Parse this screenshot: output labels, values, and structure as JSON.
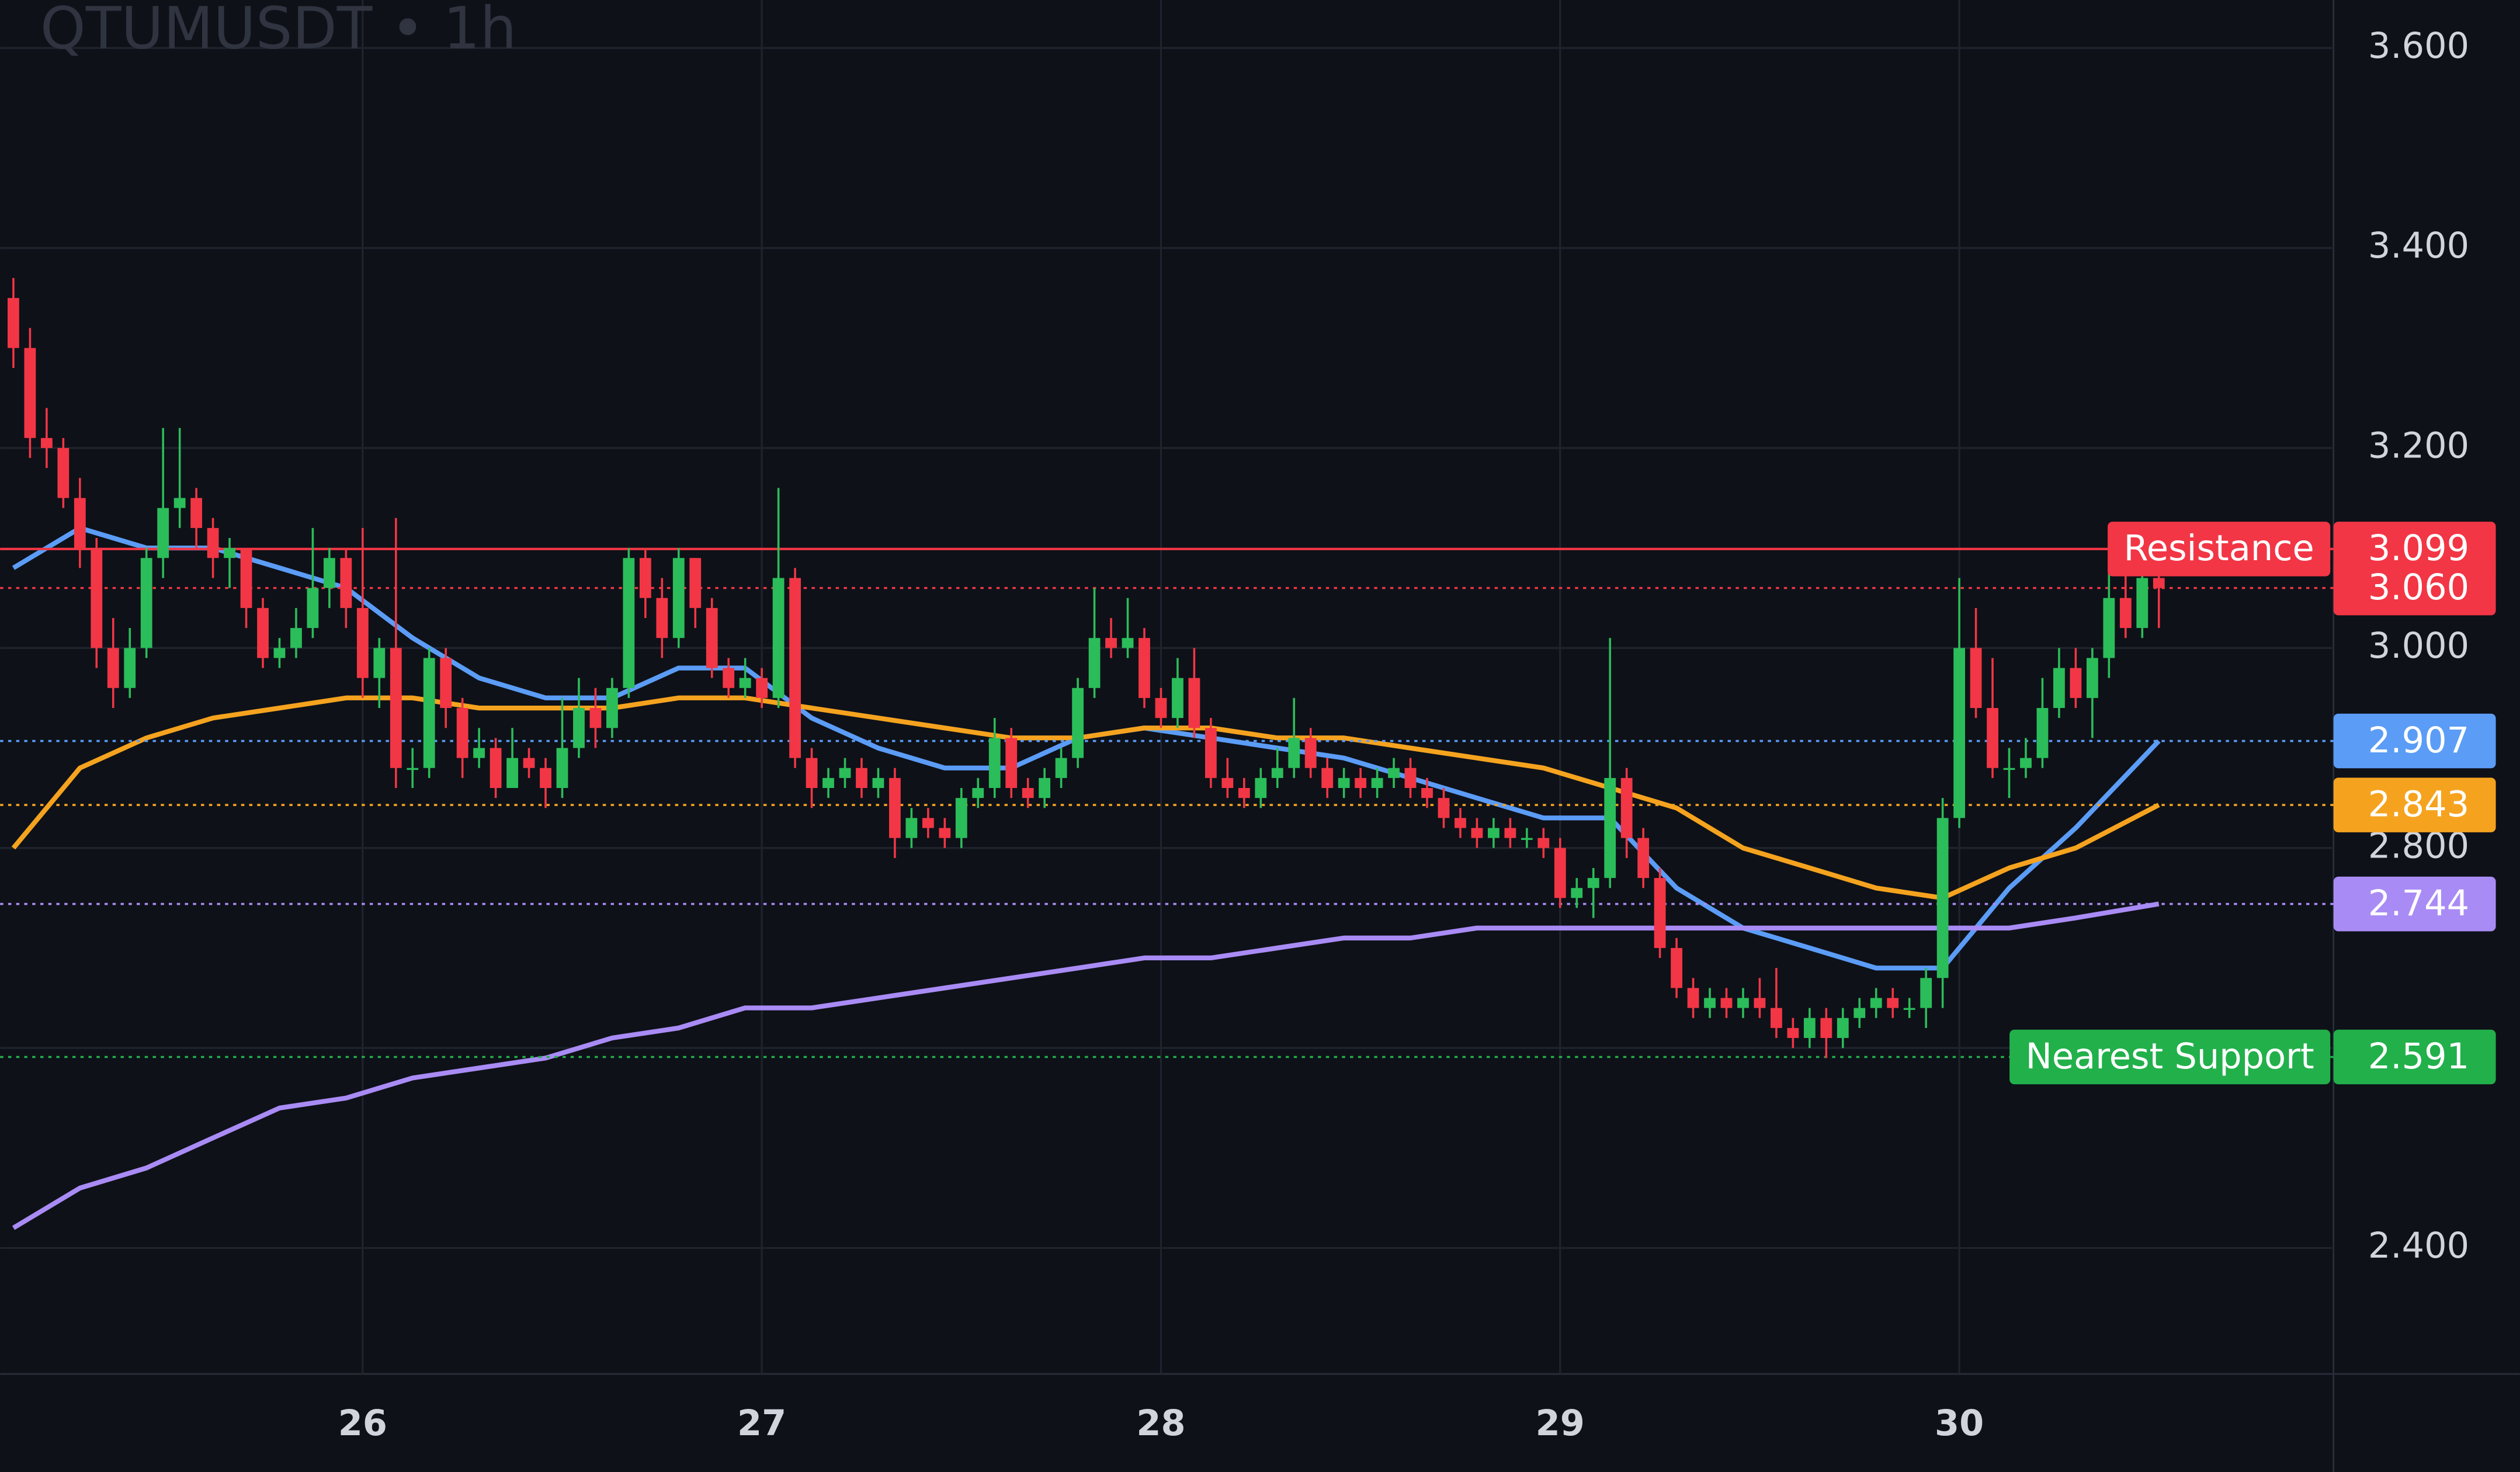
{
  "chart_data": {
    "type": "candlestick",
    "title": "QTUMUSDT • 1h",
    "up_color": "#2bbd5a",
    "down_color": "#f23645",
    "grid": true,
    "xlim": [
      -0.8,
      139.5
    ],
    "xticks": [
      {
        "value": 21,
        "label": "26"
      },
      {
        "value": 45,
        "label": "27"
      },
      {
        "value": 69,
        "label": "28"
      },
      {
        "value": 93,
        "label": "29"
      },
      {
        "value": 117,
        "label": "30"
      }
    ],
    "ylim": [
      2.274,
      3.648
    ],
    "yticks": [
      {
        "value": 2.4,
        "label": "2.400"
      },
      {
        "value": 2.6,
        "label": "2.600"
      },
      {
        "value": 2.8,
        "label": "2.800"
      },
      {
        "value": 3.0,
        "label": "3.000"
      },
      {
        "value": 3.2,
        "label": "3.200"
      },
      {
        "value": 3.4,
        "label": "3.400"
      },
      {
        "value": 3.6,
        "label": "3.600"
      }
    ],
    "candles": [
      [
        3.35,
        3.37,
        3.28,
        3.3
      ],
      [
        3.3,
        3.32,
        3.19,
        3.21
      ],
      [
        3.21,
        3.24,
        3.18,
        3.2
      ],
      [
        3.2,
        3.21,
        3.14,
        3.15
      ],
      [
        3.15,
        3.17,
        3.08,
        3.1
      ],
      [
        3.1,
        3.11,
        2.98,
        3.0
      ],
      [
        3.0,
        3.03,
        2.94,
        2.96
      ],
      [
        2.96,
        3.02,
        2.95,
        3.0
      ],
      [
        3.0,
        3.1,
        2.99,
        3.09
      ],
      [
        3.09,
        3.22,
        3.07,
        3.14
      ],
      [
        3.14,
        3.22,
        3.12,
        3.15
      ],
      [
        3.15,
        3.16,
        3.1,
        3.12
      ],
      [
        3.12,
        3.13,
        3.07,
        3.09
      ],
      [
        3.09,
        3.11,
        3.06,
        3.1
      ],
      [
        3.1,
        3.1,
        3.02,
        3.04
      ],
      [
        3.04,
        3.05,
        2.98,
        2.99
      ],
      [
        2.99,
        3.01,
        2.98,
        3.0
      ],
      [
        3.0,
        3.04,
        2.99,
        3.02
      ],
      [
        3.02,
        3.12,
        3.01,
        3.06
      ],
      [
        3.06,
        3.1,
        3.04,
        3.09
      ],
      [
        3.09,
        3.1,
        3.02,
        3.04
      ],
      [
        3.04,
        3.12,
        2.95,
        2.97
      ],
      [
        2.97,
        3.01,
        2.94,
        3.0
      ],
      [
        3.0,
        3.13,
        2.86,
        2.88
      ],
      [
        2.88,
        2.9,
        2.86,
        2.88
      ],
      [
        2.88,
        3.0,
        2.87,
        2.99
      ],
      [
        2.99,
        3.0,
        2.92,
        2.94
      ],
      [
        2.94,
        2.95,
        2.87,
        2.89
      ],
      [
        2.89,
        2.92,
        2.88,
        2.9
      ],
      [
        2.9,
        2.91,
        2.85,
        2.86
      ],
      [
        2.86,
        2.92,
        2.86,
        2.89
      ],
      [
        2.89,
        2.9,
        2.87,
        2.88
      ],
      [
        2.88,
        2.89,
        2.84,
        2.86
      ],
      [
        2.86,
        2.95,
        2.85,
        2.9
      ],
      [
        2.9,
        2.97,
        2.89,
        2.94
      ],
      [
        2.94,
        2.96,
        2.9,
        2.92
      ],
      [
        2.92,
        2.97,
        2.91,
        2.96
      ],
      [
        2.96,
        3.1,
        2.95,
        3.09
      ],
      [
        3.09,
        3.1,
        3.03,
        3.05
      ],
      [
        3.05,
        3.07,
        2.99,
        3.01
      ],
      [
        3.01,
        3.1,
        3.0,
        3.09
      ],
      [
        3.09,
        3.09,
        3.02,
        3.04
      ],
      [
        3.04,
        3.05,
        2.97,
        2.98
      ],
      [
        2.98,
        2.99,
        2.95,
        2.96
      ],
      [
        2.96,
        2.99,
        2.95,
        2.97
      ],
      [
        2.97,
        2.98,
        2.94,
        2.95
      ],
      [
        2.95,
        3.16,
        2.94,
        3.07
      ],
      [
        3.07,
        3.08,
        2.88,
        2.89
      ],
      [
        2.89,
        2.9,
        2.84,
        2.86
      ],
      [
        2.86,
        2.88,
        2.85,
        2.87
      ],
      [
        2.87,
        2.89,
        2.86,
        2.88
      ],
      [
        2.88,
        2.89,
        2.85,
        2.86
      ],
      [
        2.86,
        2.88,
        2.85,
        2.87
      ],
      [
        2.87,
        2.88,
        2.79,
        2.81
      ],
      [
        2.81,
        2.84,
        2.8,
        2.83
      ],
      [
        2.83,
        2.84,
        2.81,
        2.82
      ],
      [
        2.82,
        2.83,
        2.8,
        2.81
      ],
      [
        2.81,
        2.86,
        2.8,
        2.85
      ],
      [
        2.85,
        2.87,
        2.84,
        2.86
      ],
      [
        2.86,
        2.93,
        2.85,
        2.91
      ],
      [
        2.91,
        2.92,
        2.85,
        2.86
      ],
      [
        2.86,
        2.87,
        2.84,
        2.85
      ],
      [
        2.85,
        2.88,
        2.84,
        2.87
      ],
      [
        2.87,
        2.9,
        2.86,
        2.89
      ],
      [
        2.89,
        2.97,
        2.88,
        2.96
      ],
      [
        2.96,
        3.06,
        2.95,
        3.01
      ],
      [
        3.01,
        3.03,
        2.99,
        3.0
      ],
      [
        3.0,
        3.05,
        2.99,
        3.01
      ],
      [
        3.01,
        3.02,
        2.94,
        2.95
      ],
      [
        2.95,
        2.96,
        2.92,
        2.93
      ],
      [
        2.93,
        2.99,
        2.92,
        2.97
      ],
      [
        2.97,
        3.0,
        2.91,
        2.92
      ],
      [
        2.92,
        2.93,
        2.86,
        2.87
      ],
      [
        2.87,
        2.89,
        2.85,
        2.86
      ],
      [
        2.86,
        2.87,
        2.84,
        2.85
      ],
      [
        2.85,
        2.88,
        2.84,
        2.87
      ],
      [
        2.87,
        2.9,
        2.86,
        2.88
      ],
      [
        2.88,
        2.95,
        2.87,
        2.91
      ],
      [
        2.91,
        2.92,
        2.87,
        2.88
      ],
      [
        2.88,
        2.89,
        2.85,
        2.86
      ],
      [
        2.86,
        2.88,
        2.85,
        2.87
      ],
      [
        2.87,
        2.88,
        2.85,
        2.86
      ],
      [
        2.86,
        2.88,
        2.85,
        2.87
      ],
      [
        2.87,
        2.89,
        2.86,
        2.88
      ],
      [
        2.88,
        2.89,
        2.85,
        2.86
      ],
      [
        2.86,
        2.87,
        2.84,
        2.85
      ],
      [
        2.85,
        2.86,
        2.82,
        2.83
      ],
      [
        2.83,
        2.84,
        2.81,
        2.82
      ],
      [
        2.82,
        2.83,
        2.8,
        2.81
      ],
      [
        2.81,
        2.83,
        2.8,
        2.82
      ],
      [
        2.82,
        2.83,
        2.8,
        2.81
      ],
      [
        2.81,
        2.82,
        2.8,
        2.81
      ],
      [
        2.81,
        2.82,
        2.79,
        2.8
      ],
      [
        2.8,
        2.81,
        2.74,
        2.75
      ],
      [
        2.75,
        2.77,
        2.74,
        2.76
      ],
      [
        2.76,
        2.78,
        2.73,
        2.77
      ],
      [
        2.77,
        3.01,
        2.76,
        2.87
      ],
      [
        2.87,
        2.88,
        2.79,
        2.81
      ],
      [
        2.81,
        2.82,
        2.76,
        2.77
      ],
      [
        2.77,
        2.78,
        2.69,
        2.7
      ],
      [
        2.7,
        2.71,
        2.65,
        2.66
      ],
      [
        2.66,
        2.67,
        2.63,
        2.64
      ],
      [
        2.64,
        2.66,
        2.63,
        2.65
      ],
      [
        2.65,
        2.66,
        2.63,
        2.64
      ],
      [
        2.64,
        2.66,
        2.63,
        2.65
      ],
      [
        2.65,
        2.67,
        2.63,
        2.64
      ],
      [
        2.64,
        2.68,
        2.61,
        2.62
      ],
      [
        2.62,
        2.63,
        2.6,
        2.61
      ],
      [
        2.61,
        2.64,
        2.6,
        2.63
      ],
      [
        2.63,
        2.64,
        2.59,
        2.61
      ],
      [
        2.61,
        2.64,
        2.6,
        2.63
      ],
      [
        2.63,
        2.65,
        2.62,
        2.64
      ],
      [
        2.64,
        2.66,
        2.63,
        2.65
      ],
      [
        2.65,
        2.66,
        2.63,
        2.64
      ],
      [
        2.64,
        2.65,
        2.63,
        2.64
      ],
      [
        2.64,
        2.68,
        2.62,
        2.67
      ],
      [
        2.67,
        2.85,
        2.64,
        2.83
      ],
      [
        2.83,
        3.07,
        2.82,
        3.0
      ],
      [
        3.0,
        3.04,
        2.93,
        2.94
      ],
      [
        2.94,
        2.99,
        2.87,
        2.88
      ],
      [
        2.88,
        2.9,
        2.85,
        2.88
      ],
      [
        2.88,
        2.91,
        2.87,
        2.89
      ],
      [
        2.89,
        2.97,
        2.88,
        2.94
      ],
      [
        2.94,
        3.0,
        2.93,
        2.98
      ],
      [
        2.98,
        3.0,
        2.94,
        2.95
      ],
      [
        2.95,
        3.0,
        2.91,
        2.99
      ],
      [
        2.99,
        3.09,
        2.97,
        3.05
      ],
      [
        3.05,
        3.09,
        3.01,
        3.02
      ],
      [
        3.02,
        3.09,
        3.01,
        3.07
      ],
      [
        3.07,
        3.08,
        3.02,
        3.06
      ]
    ],
    "series": [
      {
        "color": "#5b9cf6",
        "x": [
          0,
          4,
          8,
          12,
          16,
          20,
          24,
          28,
          32,
          36,
          40,
          44,
          48,
          52,
          56,
          60,
          64,
          68,
          72,
          76,
          80,
          84,
          88,
          92,
          96,
          100,
          104,
          108,
          112,
          116,
          120,
          124,
          129
        ],
        "values": [
          3.08,
          3.12,
          3.1,
          3.1,
          3.08,
          3.06,
          3.01,
          2.97,
          2.95,
          2.95,
          2.98,
          2.98,
          2.93,
          2.9,
          2.88,
          2.88,
          2.91,
          2.92,
          2.91,
          2.9,
          2.89,
          2.87,
          2.85,
          2.83,
          2.83,
          2.76,
          2.72,
          2.7,
          2.68,
          2.68,
          2.76,
          2.82,
          2.907
        ]
      },
      {
        "color": "#f5a31f",
        "x": [
          0,
          4,
          8,
          12,
          16,
          20,
          24,
          28,
          32,
          36,
          40,
          44,
          48,
          52,
          56,
          60,
          64,
          68,
          72,
          76,
          80,
          84,
          88,
          92,
          96,
          100,
          104,
          108,
          112,
          116,
          120,
          124,
          129
        ],
        "values": [
          2.8,
          2.88,
          2.91,
          2.93,
          2.94,
          2.95,
          2.95,
          2.94,
          2.94,
          2.94,
          2.95,
          2.95,
          2.94,
          2.93,
          2.92,
          2.91,
          2.91,
          2.92,
          2.92,
          2.91,
          2.91,
          2.9,
          2.89,
          2.88,
          2.86,
          2.84,
          2.8,
          2.78,
          2.76,
          2.75,
          2.78,
          2.8,
          2.843
        ]
      },
      {
        "color": "#a98bf5",
        "x": [
          0,
          4,
          8,
          12,
          16,
          20,
          24,
          28,
          32,
          36,
          40,
          44,
          48,
          52,
          56,
          60,
          64,
          68,
          72,
          76,
          80,
          84,
          88,
          92,
          96,
          100,
          104,
          108,
          112,
          116,
          120,
          124,
          129
        ],
        "values": [
          2.42,
          2.46,
          2.48,
          2.51,
          2.54,
          2.55,
          2.57,
          2.58,
          2.59,
          2.61,
          2.62,
          2.64,
          2.64,
          2.65,
          2.66,
          2.67,
          2.68,
          2.69,
          2.69,
          2.7,
          2.71,
          2.71,
          2.72,
          2.72,
          2.72,
          2.72,
          2.72,
          2.72,
          2.72,
          2.72,
          2.72,
          2.73,
          2.744
        ]
      }
    ],
    "levels": [
      {
        "name": "Resistance",
        "value": 3.099,
        "label": "3.099",
        "color": "#f23645",
        "line": "solid"
      },
      {
        "value": 3.06,
        "label": "3.060",
        "color": "#f23645",
        "line": "dotted"
      },
      {
        "value": 2.907,
        "label": "2.907",
        "color": "#5b9cf6",
        "line": "dotted"
      },
      {
        "value": 2.843,
        "label": "2.843",
        "color": "#f5a31f",
        "line": "dotted"
      },
      {
        "value": 2.744,
        "label": "2.744",
        "color": "#a98bf5",
        "line": "dotted"
      },
      {
        "name": "Nearest Support",
        "value": 2.591,
        "label": "2.591",
        "color": "#22b04b",
        "line": "dotted"
      }
    ]
  }
}
